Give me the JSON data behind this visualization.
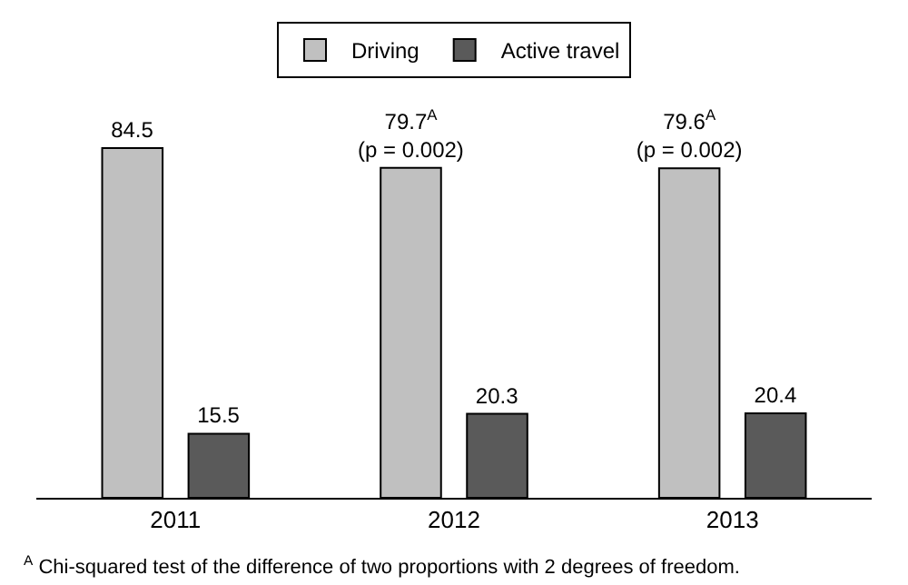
{
  "chart_data": {
    "type": "bar",
    "categories": [
      "2011",
      "2012",
      "2013"
    ],
    "series": [
      {
        "name": "Driving",
        "color": "#c0c0c0",
        "values": [
          84.5,
          79.7,
          79.6
        ],
        "value_labels": [
          "84.5",
          "79.7$^{A}$\n(p = 0.002)",
          "79.6$^{A}$\n(p = 0.002)"
        ]
      },
      {
        "name": "Active travel",
        "color": "#5a5a5a",
        "values": [
          15.5,
          20.3,
          20.4
        ],
        "value_labels": [
          "15.5",
          "20.3",
          "20.4"
        ]
      }
    ],
    "legend": "top",
    "annotations": [
      "$^{A}$ Chi-squared test of the difference of two proportions with 2 degrees of freedom."
    ]
  }
}
